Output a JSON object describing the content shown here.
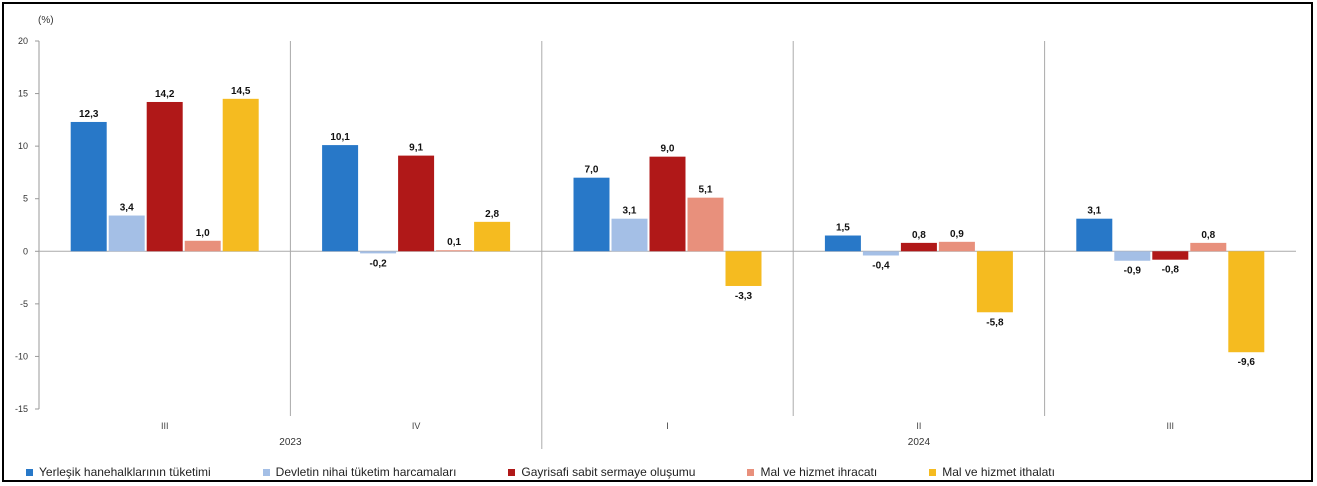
{
  "chart_data": {
    "type": "bar",
    "ylabel": "(%)",
    "ylim": [
      -15,
      20
    ],
    "yticks": [
      20,
      15,
      10,
      5,
      0,
      -5,
      -10,
      -15
    ],
    "categories": [
      "III",
      "IV",
      "I",
      "II",
      "III"
    ],
    "year_labels": [
      "2023",
      "2024"
    ],
    "grid": false,
    "legend_position": "bottom",
    "series": [
      {
        "name": "Yerleşik hanehalklarının tüketimi",
        "color": "#2878c8",
        "values": [
          12.3,
          10.1,
          7.0,
          1.5,
          3.1
        ]
      },
      {
        "name": "Devletin nihai tüketim harcamaları",
        "color": "#a4bfe6",
        "values": [
          3.4,
          -0.2,
          3.1,
          -0.4,
          -0.9
        ]
      },
      {
        "name": "Gayrisafi sabit sermaye oluşumu",
        "color": "#b01818",
        "values": [
          14.2,
          9.1,
          9.0,
          0.8,
          -0.8
        ]
      },
      {
        "name": "Mal ve hizmet ihracatı",
        "color": "#e8907c",
        "values": [
          1.0,
          0.1,
          5.1,
          0.9,
          0.8
        ]
      },
      {
        "name": "Mal ve hizmet ithalatı",
        "color": "#f5bb20",
        "values": [
          14.5,
          2.8,
          -3.3,
          -5.8,
          -9.6
        ]
      }
    ]
  }
}
